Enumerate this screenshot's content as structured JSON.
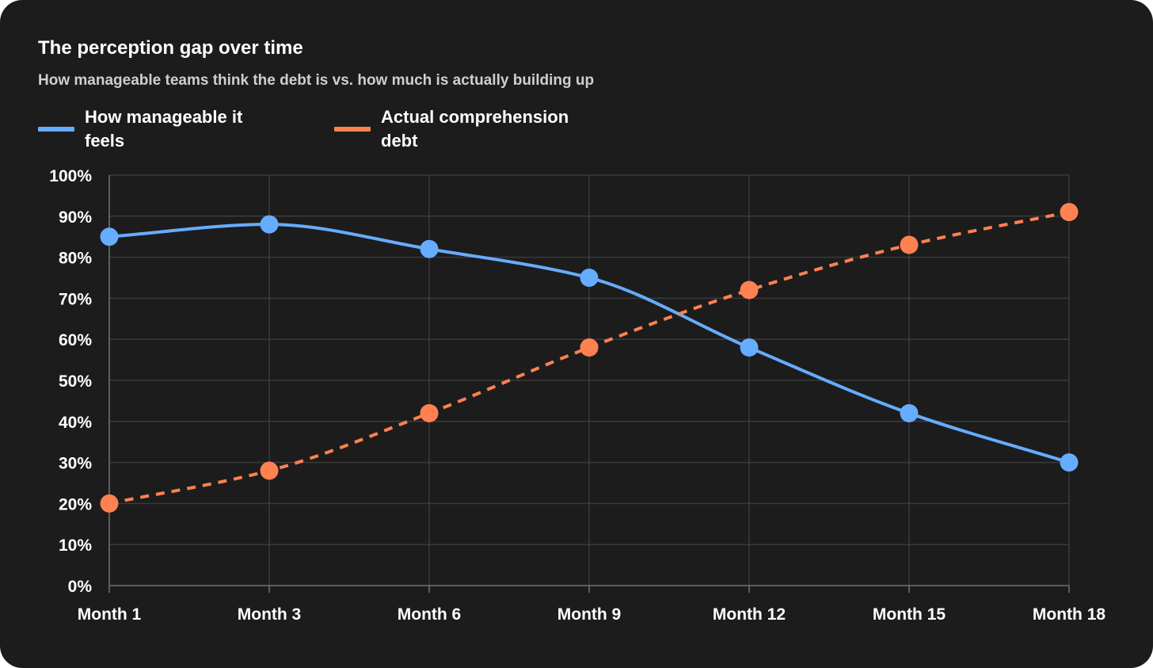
{
  "colors": {
    "background": "#1c1c1c",
    "grid": "#3a3a3a",
    "axis": "#707070",
    "blue": "#66acff",
    "orange": "#ff8151"
  },
  "chart_data": {
    "type": "line",
    "title": "The perception gap over time",
    "subtitle": "How manageable teams think the debt is vs. how much is actually building up",
    "categories": [
      "Month 1",
      "Month 3",
      "Month 6",
      "Month 9",
      "Month 12",
      "Month 15",
      "Month 18"
    ],
    "series": [
      {
        "name": "How manageable it feels",
        "color": "#66acff",
        "line_style": "solid",
        "values": [
          85,
          88,
          82,
          75,
          58,
          42,
          30
        ]
      },
      {
        "name": "Actual comprehension debt",
        "color": "#ff8151",
        "line_style": "dashed",
        "values": [
          20,
          28,
          42,
          58,
          72,
          83,
          91
        ]
      }
    ],
    "ylim": [
      0,
      100
    ],
    "y_ticks": [
      0,
      10,
      20,
      30,
      40,
      50,
      60,
      70,
      80,
      90,
      100
    ],
    "y_tick_labels": [
      "0%",
      "10%",
      "20%",
      "30%",
      "40%",
      "50%",
      "60%",
      "70%",
      "80%",
      "90%",
      "100%"
    ],
    "xlabel": "",
    "ylabel": "",
    "grid": true,
    "legend_position": "top-left"
  }
}
